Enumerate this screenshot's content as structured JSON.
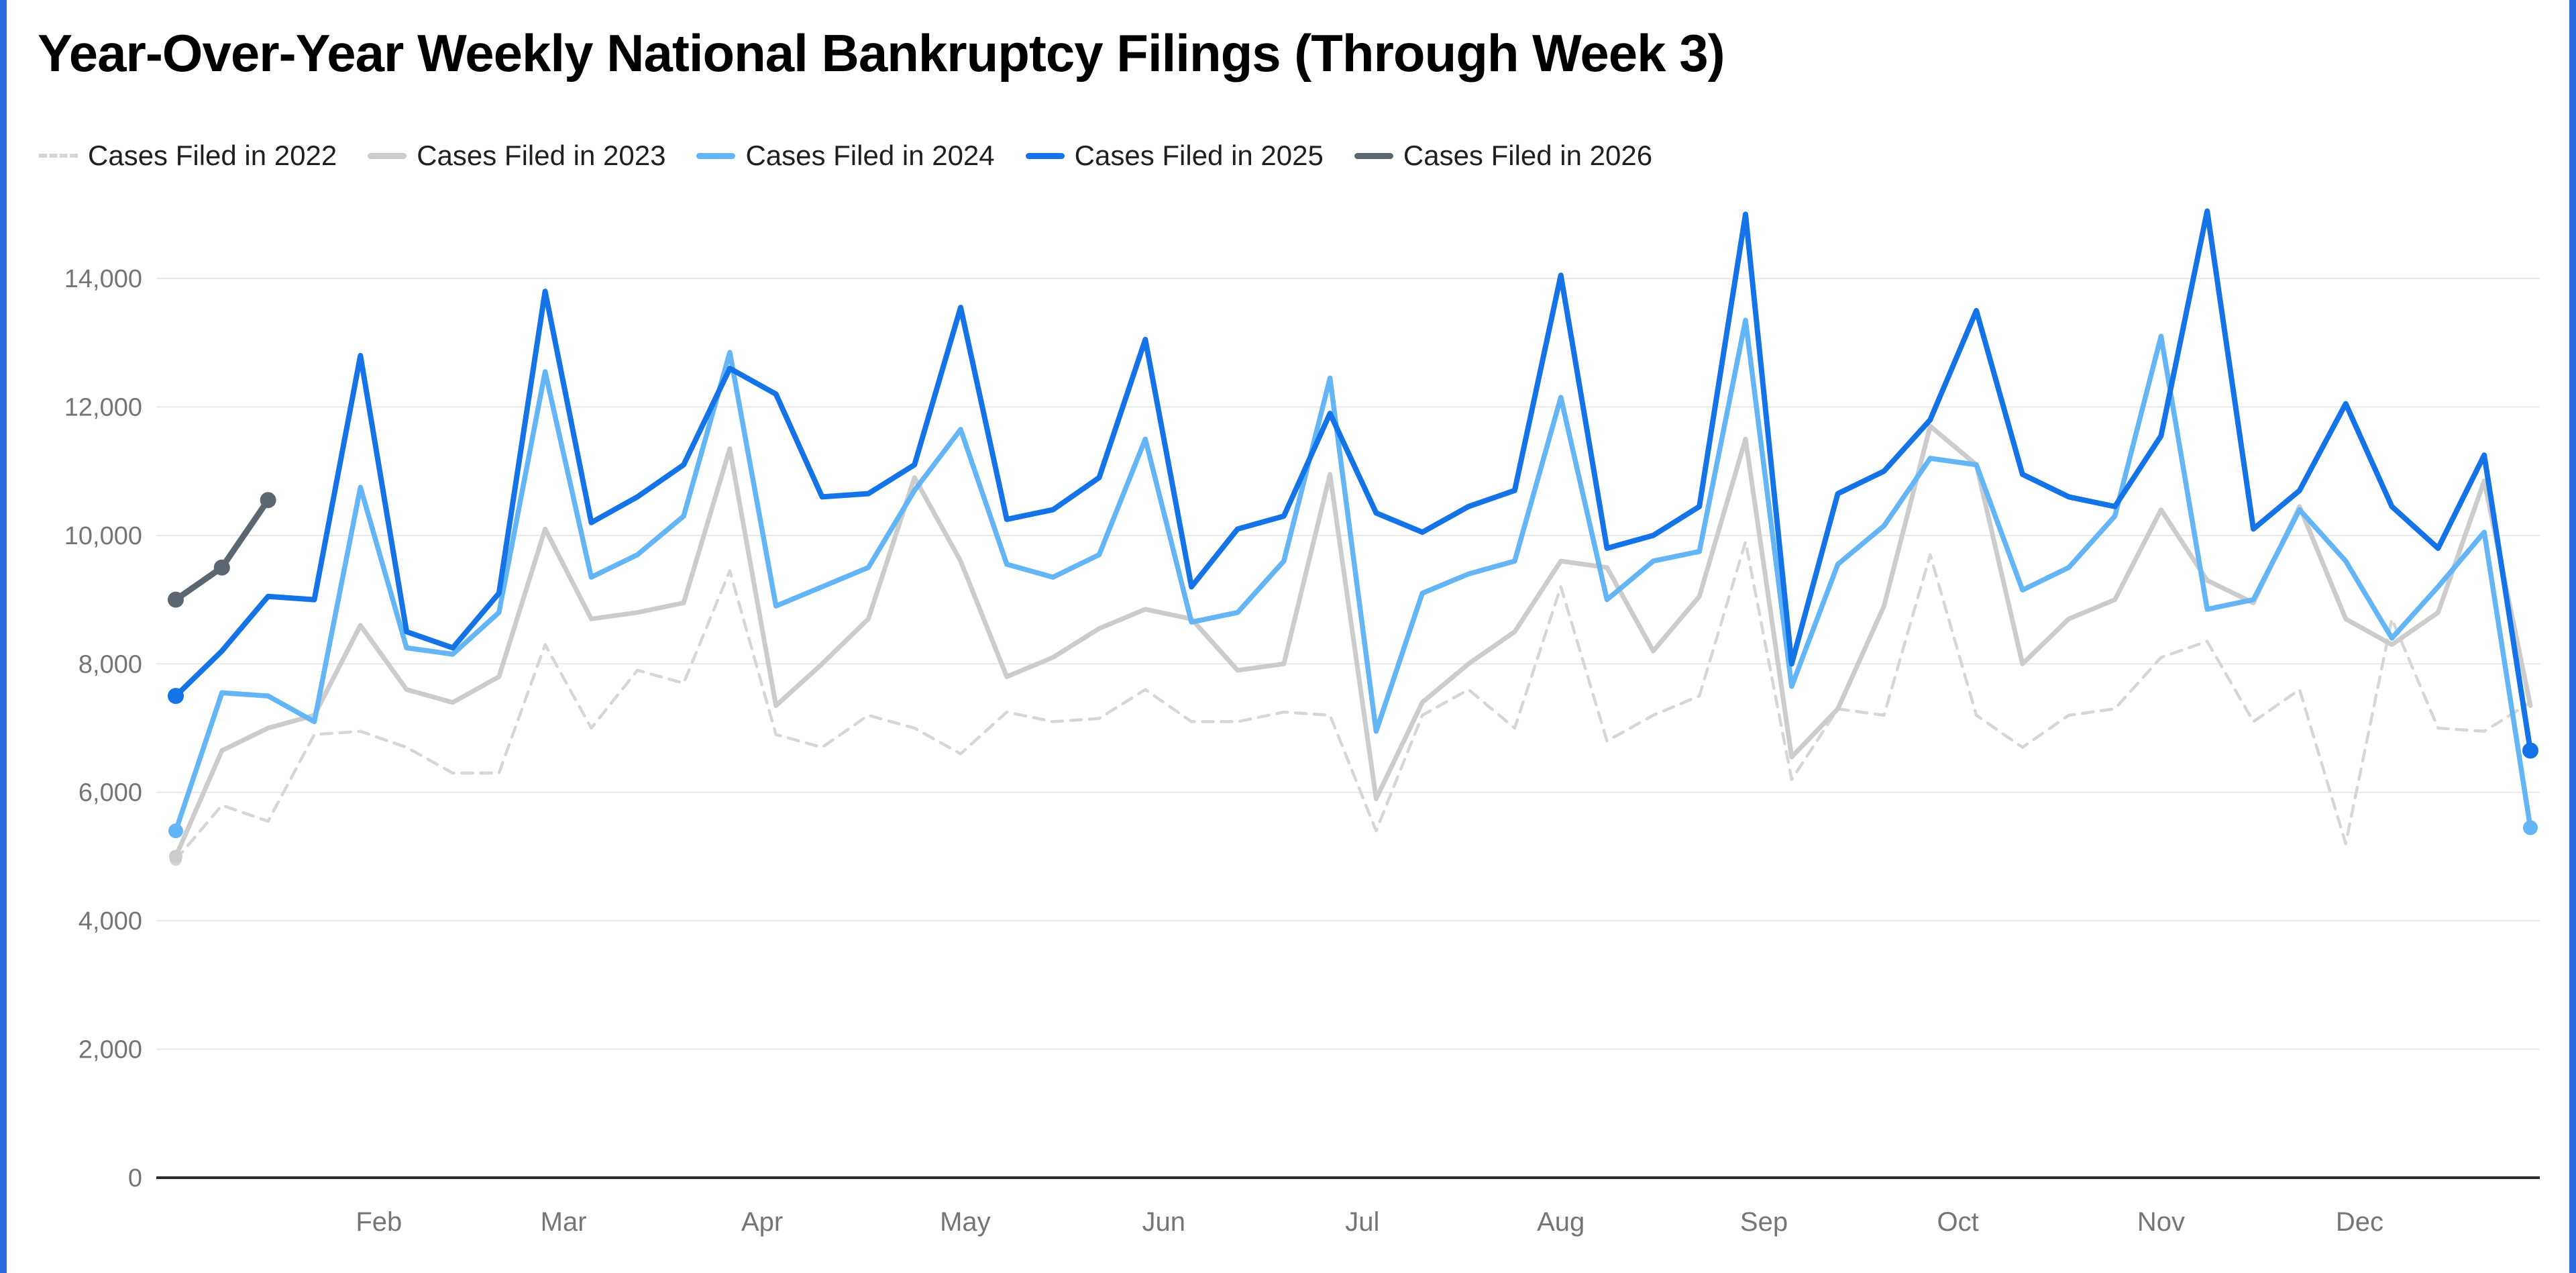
{
  "page": {
    "background": "#ffffff",
    "edge_accent_color": "#2a6be2"
  },
  "chart_data": {
    "type": "line",
    "title": "Year-Over-Year Weekly National Bankruptcy Filings (Through Week 3)",
    "xlabel": "",
    "ylabel": "",
    "x_unit": "week",
    "x_range": [
      1,
      52
    ],
    "ylim": [
      0,
      15200
    ],
    "grid": "horizontal",
    "legend_position": "top",
    "axis_text_color": "#757575",
    "grid_color": "#e9e9e9",
    "baseline_color": "#2b2b2b",
    "y_ticks": [
      0,
      2000,
      4000,
      6000,
      8000,
      10000,
      12000,
      14000
    ],
    "x_ticks": [
      {
        "label": "Feb",
        "week": 5.4
      },
      {
        "label": "Mar",
        "week": 9.4
      },
      {
        "label": "Apr",
        "week": 13.7
      },
      {
        "label": "May",
        "week": 18.1
      },
      {
        "label": "Jun",
        "week": 22.4
      },
      {
        "label": "Jul",
        "week": 26.7
      },
      {
        "label": "Aug",
        "week": 31.0
      },
      {
        "label": "Sep",
        "week": 35.4
      },
      {
        "label": "Oct",
        "week": 39.6
      },
      {
        "label": "Nov",
        "week": 44.0
      },
      {
        "label": "Dec",
        "week": 48.3
      }
    ],
    "series": [
      {
        "name": "Cases Filed in 2022",
        "color": "#d6d6d6",
        "dash": "16 12",
        "width": 4.5,
        "marker_r": 9,
        "start_week": 1,
        "markers": {
          "first": true,
          "last": false
        },
        "values": [
          4950,
          5800,
          5550,
          6900,
          6950,
          6700,
          6300,
          6300,
          8300,
          7000,
          7900,
          7700,
          9450,
          6900,
          6700,
          7200,
          7000,
          6600,
          7250,
          7100,
          7150,
          7600,
          7100,
          7100,
          7250,
          7200,
          5400,
          7200,
          7600,
          7000,
          9200,
          6800,
          7200,
          7500,
          9900,
          6200,
          7300,
          7200,
          9700,
          7200,
          6700,
          7200,
          7300,
          8100,
          8350,
          7100,
          7600,
          5200,
          8700,
          7000,
          6950,
          7400
        ]
      },
      {
        "name": "Cases Filed in 2023",
        "color": "#cccccc",
        "dash": null,
        "width": 7,
        "marker_r": 10,
        "start_week": 1,
        "markers": {
          "first": true,
          "last": false
        },
        "values": [
          5000,
          6650,
          7000,
          7200,
          8600,
          7600,
          7400,
          7800,
          10100,
          8700,
          8800,
          8950,
          11350,
          7350,
          8000,
          8700,
          10900,
          9600,
          7800,
          8100,
          8550,
          8850,
          8700,
          7900,
          8000,
          10950,
          5900,
          7400,
          8000,
          8500,
          9600,
          9500,
          8200,
          9050,
          11500,
          6550,
          7300,
          8900,
          11700,
          11100,
          8000,
          8700,
          9000,
          10400,
          9300,
          8950,
          10450,
          8700,
          8300,
          8800,
          10850,
          7350
        ]
      },
      {
        "name": "Cases Filed in 2024",
        "color": "#64b5f6",
        "dash": null,
        "width": 7.5,
        "marker_r": 11,
        "start_week": 1,
        "markers": {
          "first": true,
          "last": true
        },
        "values": [
          5400,
          7550,
          7500,
          7100,
          10750,
          8250,
          8150,
          8800,
          12550,
          9350,
          9700,
          10300,
          12850,
          8900,
          9200,
          9500,
          10700,
          11650,
          9550,
          9350,
          9700,
          11500,
          8650,
          8800,
          9600,
          12450,
          6950,
          9100,
          9400,
          9600,
          12150,
          9000,
          9600,
          9750,
          13350,
          7650,
          9550,
          10150,
          11200,
          11100,
          9150,
          9500,
          10300,
          13100,
          8850,
          9000,
          10400,
          9600,
          8400,
          9200,
          10050,
          5450
        ]
      },
      {
        "name": "Cases Filed in 2025",
        "color": "#1473e6",
        "dash": null,
        "width": 8,
        "marker_r": 12,
        "start_week": 1,
        "markers": {
          "first": true,
          "last": true
        },
        "values": [
          7500,
          8200,
          9050,
          9000,
          12800,
          8500,
          8250,
          9100,
          13800,
          10200,
          10600,
          11100,
          12600,
          12200,
          10600,
          10650,
          11100,
          13550,
          10250,
          10400,
          10900,
          13050,
          9200,
          10100,
          10300,
          11900,
          10350,
          10050,
          10450,
          10700,
          14050,
          9800,
          10000,
          10450,
          15000,
          8000,
          10650,
          11000,
          11800,
          13500,
          10950,
          10600,
          10450,
          11550,
          15050,
          10100,
          10700,
          12050,
          10450,
          9800,
          11250,
          6650
        ]
      },
      {
        "name": "Cases Filed in 2026",
        "color": "#5c6670",
        "dash": null,
        "width": 9,
        "marker_r": 12,
        "start_week": 1,
        "markers": {
          "first": true,
          "last": true,
          "all": true
        },
        "values": [
          9000,
          9500,
          10550
        ]
      }
    ]
  }
}
